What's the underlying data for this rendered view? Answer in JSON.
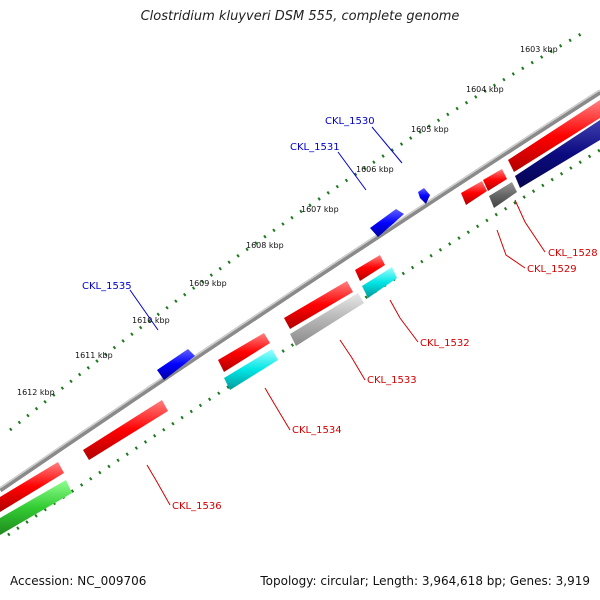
{
  "title": "Clostridium kluyveri DSM 555, complete genome",
  "footer": {
    "accession": "Accession: NC_009706",
    "summary": "Topology: circular; Length: 3,964,618 bp; Genes: 3,919"
  },
  "ticks": [
    {
      "label": "1603 kbp"
    },
    {
      "label": "1604 kbp"
    },
    {
      "label": "1605 kbp"
    },
    {
      "label": "1606 kbp"
    },
    {
      "label": "1607 kbp"
    },
    {
      "label": "1608 kbp"
    },
    {
      "label": "1609 kbp"
    },
    {
      "label": "1610 kbp"
    },
    {
      "label": "1611 kbp"
    },
    {
      "label": "1612 kbp"
    }
  ],
  "gene_labels": [
    {
      "text": "CKL_1528",
      "color": "#d40000"
    },
    {
      "text": "CKL_1529",
      "color": "#d40000"
    },
    {
      "text": "CKL_1530",
      "color": "#0000cc"
    },
    {
      "text": "CKL_1531",
      "color": "#0000cc"
    },
    {
      "text": "CKL_1532",
      "color": "#d40000"
    },
    {
      "text": "CKL_1533",
      "color": "#d40000"
    },
    {
      "text": "CKL_1534",
      "color": "#d40000"
    },
    {
      "text": "CKL_1535",
      "color": "#0000cc"
    },
    {
      "text": "CKL_1536",
      "color": "#d40000"
    }
  ],
  "colors": {
    "backbone": "#8a8a8a",
    "tick": "#1f7a1f",
    "forward_gene": "#0000ff",
    "reverse_gene": "#ff0000",
    "cyan_feature": "#00e5e5",
    "gray_feature": "#b5b5b5",
    "dark_gray_feature": "#666666",
    "navy_feature": "#0b0b80",
    "green_feature": "#33cc33"
  }
}
